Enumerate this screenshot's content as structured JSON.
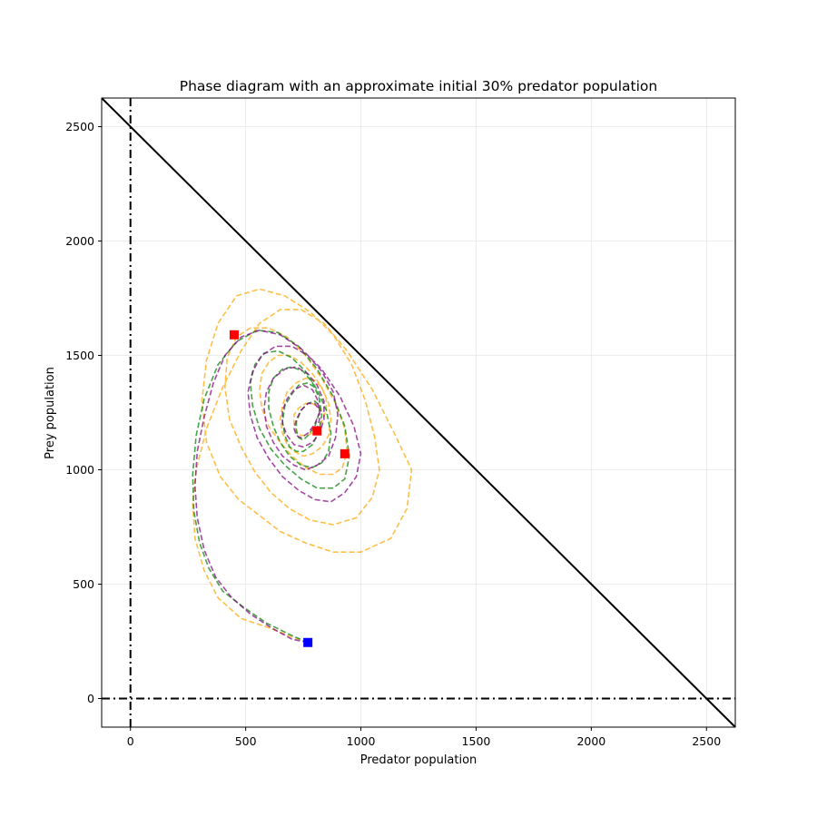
{
  "chart_data": {
    "type": "line",
    "title": "Phase diagram with an approximate initial 30% predator population",
    "xlabel": "Predator population",
    "ylabel": "Prey population",
    "xlim": [
      -125,
      2625
    ],
    "ylim": [
      -125,
      2625
    ],
    "xticks": [
      0,
      500,
      1000,
      1500,
      2000,
      2500
    ],
    "yticks": [
      0,
      500,
      1000,
      1500,
      2000,
      2500
    ],
    "grid": true,
    "boundary_line": {
      "x": [
        -125,
        2625
      ],
      "y": [
        2625,
        -125
      ]
    },
    "reference_lines": {
      "x0": 0,
      "y0": 0
    },
    "start_point": {
      "x": 770,
      "y": 245,
      "color": "#0000ff"
    },
    "end_points": [
      {
        "x": 450,
        "y": 1590,
        "color": "#ff0000"
      },
      {
        "x": 810,
        "y": 1170,
        "color": "#ff0000"
      },
      {
        "x": 930,
        "y": 1070,
        "color": "#ff0000"
      }
    ],
    "series": [
      {
        "color": "#ffa500",
        "x": [
          770,
          700,
          600,
          480,
          380,
          320,
          280,
          270,
          285,
          330,
          400,
          480,
          560,
          650,
          740,
          840,
          940,
          1050,
          1150,
          1220,
          1200,
          1130,
          1000,
          880,
          760,
          650,
          560,
          470,
          390,
          330,
          310,
          330,
          380,
          460,
          560,
          670,
          780,
          880,
          960,
          1020,
          1060,
          1080,
          1050,
          980,
          880,
          780,
          690,
          610,
          540,
          480,
          430,
          410,
          420,
          460,
          520,
          600,
          680,
          760,
          830,
          890,
          930,
          940,
          920,
          880,
          820,
          760,
          700,
          650,
          600,
          570,
          560,
          570,
          600,
          640,
          690,
          740,
          790,
          830,
          860,
          870,
          860,
          830,
          790,
          750,
          710,
          680,
          660,
          650,
          660,
          680,
          720,
          760,
          800,
          830,
          850,
          850,
          830,
          800,
          770,
          740,
          720,
          710,
          710,
          730,
          760,
          790,
          820,
          840
        ],
        "y": [
          245,
          270,
          310,
          350,
          440,
          560,
          700,
          850,
          1000,
          1180,
          1360,
          1520,
          1640,
          1700,
          1700,
          1640,
          1520,
          1350,
          1150,
          1000,
          830,
          700,
          640,
          640,
          680,
          730,
          800,
          870,
          970,
          1120,
          1300,
          1480,
          1640,
          1760,
          1790,
          1760,
          1690,
          1590,
          1460,
          1300,
          1140,
          1000,
          880,
          790,
          760,
          780,
          830,
          900,
          990,
          1100,
          1220,
          1360,
          1490,
          1580,
          1620,
          1620,
          1580,
          1500,
          1400,
          1290,
          1180,
          1080,
          1010,
          980,
          980,
          1010,
          1060,
          1120,
          1190,
          1270,
          1350,
          1420,
          1470,
          1500,
          1500,
          1470,
          1420,
          1360,
          1290,
          1220,
          1150,
          1100,
          1070,
          1060,
          1080,
          1110,
          1160,
          1220,
          1280,
          1340,
          1380,
          1400,
          1390,
          1360,
          1310,
          1260,
          1210,
          1170,
          1150,
          1150,
          1170,
          1200,
          1240,
          1270,
          1290,
          1290,
          1270,
          1240
        ]
      },
      {
        "color": "#008000",
        "x": [
          770,
          690,
          590,
          490,
          400,
          340,
          300,
          275,
          270,
          285,
          320,
          380,
          460,
          550,
          640,
          730,
          810,
          880,
          930,
          950,
          930,
          880,
          810,
          740,
          670,
          610,
          560,
          530,
          520,
          540,
          580,
          640,
          700,
          760,
          810,
          850,
          870,
          860,
          830,
          790,
          740,
          690,
          650,
          620,
          600,
          600,
          620,
          660,
          700,
          750,
          790,
          820,
          830,
          820,
          790,
          750,
          720,
          690,
          670,
          660,
          670,
          700,
          730,
          770,
          800,
          820,
          820,
          800,
          770,
          750,
          730,
          720,
          720,
          740,
          770,
          800,
          820,
          830
        ],
        "y": [
          245,
          280,
          330,
          400,
          470,
          570,
          680,
          820,
          980,
          1150,
          1310,
          1460,
          1560,
          1610,
          1600,
          1540,
          1440,
          1320,
          1190,
          1060,
          960,
          920,
          920,
          960,
          1020,
          1090,
          1180,
          1280,
          1380,
          1460,
          1510,
          1520,
          1490,
          1430,
          1350,
          1260,
          1160,
          1080,
          1030,
          1010,
          1020,
          1060,
          1120,
          1190,
          1270,
          1340,
          1400,
          1440,
          1450,
          1430,
          1380,
          1310,
          1240,
          1170,
          1110,
          1080,
          1080,
          1100,
          1150,
          1210,
          1280,
          1330,
          1370,
          1380,
          1360,
          1310,
          1250,
          1190,
          1150,
          1130,
          1140,
          1170,
          1210,
          1260,
          1290,
          1300,
          1280,
          1240
        ]
      },
      {
        "color": "#800080",
        "x": [
          770,
          700,
          610,
          520,
          440,
          370,
          320,
          290,
          280,
          290,
          320,
          360,
          410,
          480,
          560,
          650,
          740,
          830,
          910,
          970,
          1000,
          980,
          930,
          870,
          800,
          730,
          660,
          600,
          550,
          520,
          510,
          530,
          570,
          630,
          700,
          770,
          830,
          880,
          900,
          890,
          860,
          810,
          760,
          710,
          660,
          620,
          590,
          580,
          590,
          620,
          670,
          720,
          770,
          810,
          840,
          840,
          820,
          790,
          750,
          710,
          680,
          660,
          660,
          680,
          710,
          750,
          790,
          810,
          820,
          800,
          770,
          740,
          720,
          710,
          720,
          740,
          770,
          800,
          820,
          820,
          810
        ],
        "y": [
          245,
          260,
          310,
          370,
          440,
          530,
          650,
          790,
          930,
          1080,
          1230,
          1380,
          1500,
          1580,
          1610,
          1590,
          1530,
          1440,
          1320,
          1190,
          1070,
          970,
          900,
          860,
          870,
          910,
          970,
          1050,
          1140,
          1240,
          1340,
          1430,
          1500,
          1540,
          1540,
          1500,
          1430,
          1340,
          1240,
          1140,
          1060,
          1020,
          1000,
          1020,
          1060,
          1120,
          1190,
          1270,
          1340,
          1400,
          1440,
          1450,
          1420,
          1370,
          1300,
          1220,
          1160,
          1120,
          1100,
          1110,
          1150,
          1200,
          1260,
          1310,
          1350,
          1370,
          1350,
          1310,
          1250,
          1200,
          1160,
          1140,
          1150,
          1180,
          1220,
          1260,
          1290,
          1290,
          1260,
          1220,
          1180
        ]
      }
    ]
  }
}
